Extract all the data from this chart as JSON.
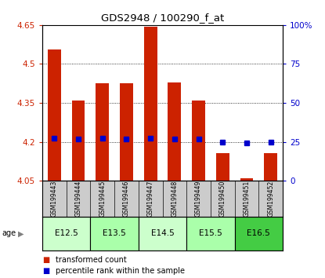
{
  "title": "GDS2948 / 100290_f_at",
  "samples": [
    "GSM199443",
    "GSM199444",
    "GSM199445",
    "GSM199446",
    "GSM199447",
    "GSM199448",
    "GSM199449",
    "GSM199450",
    "GSM199451",
    "GSM199452"
  ],
  "bar_bottom": 4.05,
  "bar_tops": [
    4.555,
    4.36,
    4.425,
    4.425,
    4.645,
    4.43,
    4.36,
    4.155,
    4.06,
    4.155
  ],
  "percentile_values": [
    4.215,
    4.21,
    4.215,
    4.21,
    4.215,
    4.21,
    4.21,
    4.2,
    4.195,
    4.2
  ],
  "ylim_left": [
    4.05,
    4.65
  ],
  "ylim_right": [
    0,
    100
  ],
  "yticks_left": [
    4.05,
    4.2,
    4.35,
    4.5,
    4.65
  ],
  "ytick_labels_left": [
    "4.05",
    "4.2",
    "4.35",
    "4.5",
    "4.65"
  ],
  "yticks_right": [
    0,
    25,
    50,
    75,
    100
  ],
  "ytick_labels_right": [
    "0",
    "25",
    "50",
    "75",
    "100%"
  ],
  "grid_yticks": [
    4.2,
    4.35,
    4.5
  ],
  "bar_color": "#cc2200",
  "marker_color": "#0000cc",
  "age_groups": [
    {
      "label": "E12.5",
      "start": 0,
      "end": 1,
      "color": "#ccffcc"
    },
    {
      "label": "E13.5",
      "start": 2,
      "end": 3,
      "color": "#aaffaa"
    },
    {
      "label": "E14.5",
      "start": 4,
      "end": 5,
      "color": "#ccffcc"
    },
    {
      "label": "E15.5",
      "start": 6,
      "end": 7,
      "color": "#aaffaa"
    },
    {
      "label": "E16.5",
      "start": 8,
      "end": 9,
      "color": "#44cc44"
    }
  ],
  "sample_bg_color": "#cccccc",
  "legend_items": [
    {
      "label": "transformed count",
      "color": "#cc2200"
    },
    {
      "label": "percentile rank within the sample",
      "color": "#0000cc"
    }
  ]
}
